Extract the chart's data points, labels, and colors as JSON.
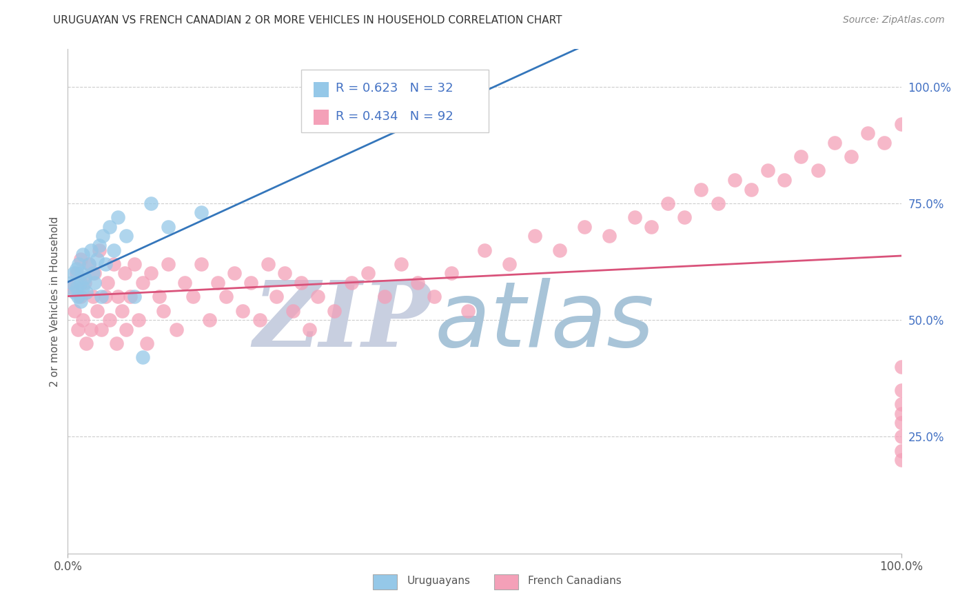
{
  "title": "URUGUAYAN VS FRENCH CANADIAN 2 OR MORE VEHICLES IN HOUSEHOLD CORRELATION CHART",
  "source": "Source: ZipAtlas.com",
  "ylabel": "2 or more Vehicles in Household",
  "ytick_labels": [
    "25.0%",
    "50.0%",
    "75.0%",
    "100.0%"
  ],
  "ytick_values": [
    0.25,
    0.5,
    0.75,
    1.0
  ],
  "xtick_labels": [
    "0.0%",
    "100.0%"
  ],
  "xtick_values": [
    0.0,
    1.0
  ],
  "xlim": [
    0.0,
    1.0
  ],
  "ylim": [
    0.0,
    1.08
  ],
  "uruguayan_color": "#95c8e8",
  "french_canadian_color": "#f4a0b8",
  "uruguayan_R": 0.623,
  "uruguayan_N": 32,
  "french_canadian_R": 0.434,
  "french_canadian_N": 92,
  "line_blue": "#3476bb",
  "line_pink": "#d9527a",
  "watermark_zip": "ZIP",
  "watermark_atlas": "atlas",
  "watermark_zip_color": "#c8cfe0",
  "watermark_atlas_color": "#a8c4d8",
  "legend_label_uruguayan": "Uruguayans",
  "legend_label_french": "French Canadians",
  "title_color": "#333333",
  "source_color": "#888888",
  "axis_label_color": "#555555",
  "tick_right_color": "#4472c4",
  "grid_color": "#cccccc",
  "legend_box_color": "#dddddd",
  "uruguayan_x": [
    0.005,
    0.007,
    0.008,
    0.01,
    0.01,
    0.012,
    0.013,
    0.015,
    0.015,
    0.016,
    0.018,
    0.018,
    0.02,
    0.022,
    0.025,
    0.028,
    0.03,
    0.032,
    0.035,
    0.038,
    0.04,
    0.042,
    0.045,
    0.05,
    0.055,
    0.06,
    0.07,
    0.08,
    0.09,
    0.1,
    0.12,
    0.16
  ],
  "uruguayan_y": [
    0.58,
    0.6,
    0.56,
    0.57,
    0.61,
    0.55,
    0.62,
    0.58,
    0.54,
    0.6,
    0.57,
    0.64,
    0.59,
    0.56,
    0.62,
    0.65,
    0.6,
    0.58,
    0.63,
    0.66,
    0.55,
    0.68,
    0.62,
    0.7,
    0.65,
    0.72,
    0.68,
    0.55,
    0.42,
    0.75,
    0.7,
    0.73
  ],
  "french_canadian_x": [
    0.005,
    0.008,
    0.01,
    0.012,
    0.015,
    0.015,
    0.018,
    0.02,
    0.022,
    0.025,
    0.028,
    0.03,
    0.032,
    0.035,
    0.038,
    0.04,
    0.045,
    0.048,
    0.05,
    0.055,
    0.058,
    0.06,
    0.065,
    0.068,
    0.07,
    0.075,
    0.08,
    0.085,
    0.09,
    0.095,
    0.1,
    0.11,
    0.115,
    0.12,
    0.13,
    0.14,
    0.15,
    0.16,
    0.17,
    0.18,
    0.19,
    0.2,
    0.21,
    0.22,
    0.23,
    0.24,
    0.25,
    0.26,
    0.27,
    0.28,
    0.29,
    0.3,
    0.32,
    0.34,
    0.36,
    0.38,
    0.4,
    0.42,
    0.44,
    0.46,
    0.48,
    0.5,
    0.53,
    0.56,
    0.59,
    0.62,
    0.65,
    0.68,
    0.7,
    0.72,
    0.74,
    0.76,
    0.78,
    0.8,
    0.82,
    0.84,
    0.86,
    0.88,
    0.9,
    0.92,
    0.94,
    0.96,
    0.98,
    1.0,
    1.0,
    1.0,
    1.0,
    1.0,
    1.0,
    1.0,
    1.0,
    1.0
  ],
  "french_canadian_y": [
    0.57,
    0.52,
    0.6,
    0.48,
    0.55,
    0.63,
    0.5,
    0.58,
    0.45,
    0.62,
    0.48,
    0.55,
    0.6,
    0.52,
    0.65,
    0.48,
    0.55,
    0.58,
    0.5,
    0.62,
    0.45,
    0.55,
    0.52,
    0.6,
    0.48,
    0.55,
    0.62,
    0.5,
    0.58,
    0.45,
    0.6,
    0.55,
    0.52,
    0.62,
    0.48,
    0.58,
    0.55,
    0.62,
    0.5,
    0.58,
    0.55,
    0.6,
    0.52,
    0.58,
    0.5,
    0.62,
    0.55,
    0.6,
    0.52,
    0.58,
    0.48,
    0.55,
    0.52,
    0.58,
    0.6,
    0.55,
    0.62,
    0.58,
    0.55,
    0.6,
    0.52,
    0.65,
    0.62,
    0.68,
    0.65,
    0.7,
    0.68,
    0.72,
    0.7,
    0.75,
    0.72,
    0.78,
    0.75,
    0.8,
    0.78,
    0.82,
    0.8,
    0.85,
    0.82,
    0.88,
    0.85,
    0.9,
    0.88,
    0.92,
    0.3,
    0.35,
    0.4,
    0.25,
    0.28,
    0.32,
    0.22,
    0.2
  ]
}
